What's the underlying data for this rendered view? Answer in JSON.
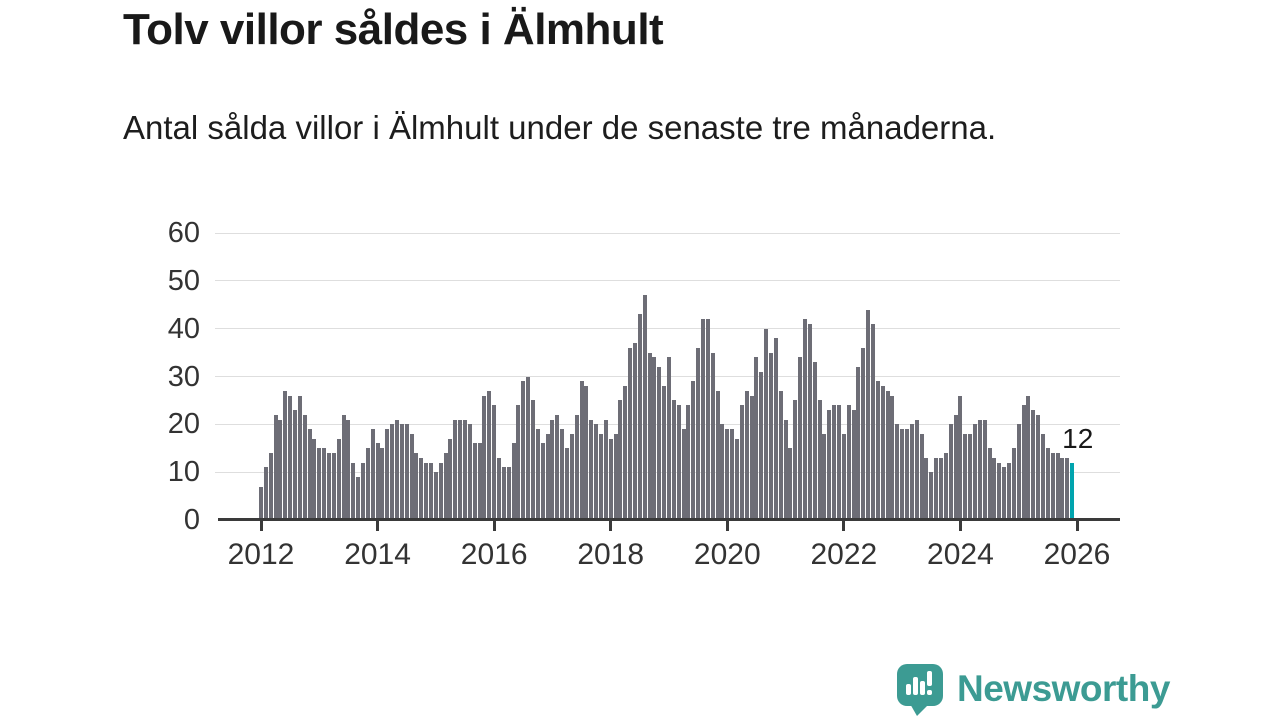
{
  "header": {
    "title": "Tolv villor såldes i Älmhult",
    "subtitle": "Antal sålda villor i Älmhult under de senaste tre månaderna."
  },
  "chart_data": {
    "type": "bar",
    "title": "Tolv villor såldes i Älmhult",
    "xlabel": "",
    "ylabel": "",
    "x_start": "2012-01",
    "x_end": "2025-12",
    "x_frequency": "monthly",
    "ylim": [
      0,
      60
    ],
    "yticks": [
      0,
      10,
      20,
      30,
      40,
      50,
      60
    ],
    "xticks": [
      2012,
      2014,
      2016,
      2018,
      2020,
      2022,
      2024,
      2026
    ],
    "grid": true,
    "bar_color": "#6d6d76",
    "highlight_color": "#00a4ae",
    "highlight_index": 167,
    "highlight_label": "12",
    "values": [
      7,
      11,
      14,
      22,
      21,
      27,
      26,
      23,
      26,
      22,
      19,
      17,
      15,
      15,
      14,
      14,
      17,
      22,
      21,
      12,
      9,
      12,
      15,
      19,
      16,
      15,
      19,
      20,
      21,
      20,
      20,
      18,
      14,
      13,
      12,
      12,
      10,
      12,
      14,
      17,
      21,
      21,
      21,
      20,
      16,
      16,
      26,
      27,
      24,
      13,
      11,
      11,
      16,
      24,
      29,
      30,
      25,
      19,
      16,
      18,
      21,
      22,
      19,
      15,
      18,
      22,
      29,
      28,
      21,
      20,
      18,
      21,
      17,
      18,
      25,
      28,
      36,
      37,
      43,
      47,
      35,
      34,
      32,
      28,
      34,
      25,
      24,
      19,
      24,
      29,
      36,
      42,
      42,
      35,
      27,
      20,
      19,
      19,
      17,
      24,
      27,
      26,
      34,
      31,
      40,
      35,
      38,
      27,
      21,
      15,
      25,
      34,
      42,
      41,
      33,
      25,
      18,
      23,
      24,
      24,
      18,
      24,
      23,
      32,
      36,
      44,
      41,
      29,
      28,
      27,
      26,
      20,
      19,
      19,
      20,
      21,
      18,
      13,
      10,
      13,
      13,
      14,
      20,
      22,
      26,
      18,
      18,
      20,
      21,
      21,
      15,
      13,
      12,
      11,
      12,
      15,
      20,
      24,
      26,
      23,
      22,
      18,
      15,
      14,
      14,
      13,
      13,
      12
    ]
  },
  "footer": {
    "brand": "Newsworthy",
    "brand_color": "#3c9b93",
    "logo_icon": "speech-bubble-bar-chart-icon"
  }
}
